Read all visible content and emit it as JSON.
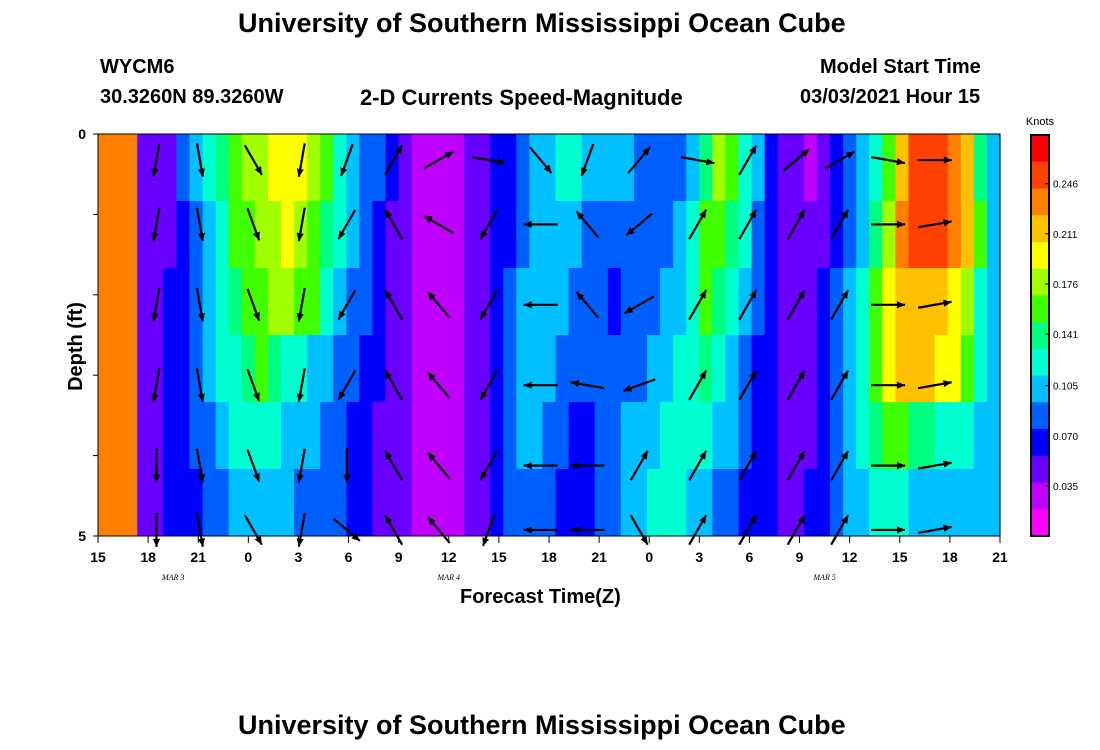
{
  "titles": {
    "top": "University of Southern Mississippi Ocean Cube",
    "bottom": "University of Southern Mississippi Ocean Cube"
  },
  "header": {
    "station": "WYCM6",
    "location": "30.3260N 89.3260W",
    "plot_title": "2-D Currents Speed-Magnitude",
    "model_label": "Model Start Time",
    "model_time": "03/03/2021 Hour 15"
  },
  "colors": {
    "scale": [
      "#ff00ff",
      "#c000ff",
      "#6a00ff",
      "#0000ff",
      "#0060ff",
      "#00c0ff",
      "#00ffd0",
      "#00ff80",
      "#40ff00",
      "#a0ff00",
      "#ffff00",
      "#ffc000",
      "#ff8000",
      "#ff4000",
      "#ff0000"
    ]
  },
  "chart_data": {
    "type": "heatmap",
    "title": "2-D Currents Speed-Magnitude",
    "xlabel": "Forecast Time(Z)",
    "ylabel": "Depth (ft)",
    "x_ticks": [
      "15",
      "18",
      "21",
      "0",
      "3",
      "6",
      "9",
      "12",
      "15",
      "18",
      "21",
      "0",
      "3",
      "6",
      "9",
      "12",
      "15",
      "18",
      "21"
    ],
    "date_labels": [
      "MAR 3",
      "MAR 4",
      "MAR 5"
    ],
    "y_ticks": [
      "0",
      "5"
    ],
    "ylim": [
      0,
      5
    ],
    "colorbar": {
      "unit": "Knots",
      "ticks": [
        "0.246",
        "0.211",
        "0.176",
        "0.141",
        "0.105",
        "0.070",
        "0.035"
      ],
      "range": [
        0,
        0.28
      ]
    },
    "depth_layers": 5,
    "speed_rows": [
      [
        0.24,
        0.24,
        0.24,
        0.05,
        0.05,
        0.05,
        0.08,
        0.1,
        0.12,
        0.14,
        0.16,
        0.17,
        0.18,
        0.19,
        0.2,
        0.19,
        0.17,
        0.15,
        0.13,
        0.11,
        0.09,
        0.08,
        0.06,
        0.04,
        0.03,
        0.02,
        0.02,
        0.03,
        0.04,
        0.05,
        0.06,
        0.06,
        0.08,
        0.1,
        0.11,
        0.12,
        0.12,
        0.11,
        0.11,
        0.1,
        0.1,
        0.09,
        0.08,
        0.08,
        0.09,
        0.11,
        0.14,
        0.17,
        0.15,
        0.13,
        0.1,
        0.07,
        0.05,
        0.04,
        0.03,
        0.05,
        0.06,
        0.08,
        0.1,
        0.12,
        0.16,
        0.22,
        0.25,
        0.26,
        0.26,
        0.24,
        0.22,
        0.14,
        0.1
      ],
      [
        0.24,
        0.24,
        0.24,
        0.05,
        0.05,
        0.05,
        0.07,
        0.09,
        0.11,
        0.13,
        0.15,
        0.16,
        0.17,
        0.18,
        0.19,
        0.18,
        0.16,
        0.14,
        0.12,
        0.1,
        0.08,
        0.07,
        0.05,
        0.04,
        0.03,
        0.02,
        0.02,
        0.03,
        0.04,
        0.05,
        0.06,
        0.07,
        0.09,
        0.1,
        0.11,
        0.11,
        0.1,
        0.09,
        0.08,
        0.08,
        0.08,
        0.08,
        0.08,
        0.09,
        0.1,
        0.12,
        0.15,
        0.16,
        0.14,
        0.12,
        0.09,
        0.07,
        0.05,
        0.04,
        0.04,
        0.05,
        0.07,
        0.09,
        0.11,
        0.14,
        0.18,
        0.23,
        0.25,
        0.26,
        0.25,
        0.24,
        0.22,
        0.15,
        0.11
      ],
      [
        0.24,
        0.24,
        0.24,
        0.05,
        0.05,
        0.06,
        0.07,
        0.09,
        0.1,
        0.12,
        0.14,
        0.15,
        0.16,
        0.17,
        0.17,
        0.16,
        0.15,
        0.13,
        0.11,
        0.09,
        0.08,
        0.06,
        0.05,
        0.04,
        0.03,
        0.02,
        0.02,
        0.03,
        0.04,
        0.05,
        0.07,
        0.08,
        0.1,
        0.11,
        0.11,
        0.1,
        0.09,
        0.08,
        0.08,
        0.07,
        0.08,
        0.08,
        0.09,
        0.1,
        0.11,
        0.13,
        0.15,
        0.14,
        0.12,
        0.1,
        0.08,
        0.06,
        0.05,
        0.04,
        0.04,
        0.06,
        0.08,
        0.1,
        0.12,
        0.16,
        0.2,
        0.22,
        0.22,
        0.22,
        0.21,
        0.2,
        0.18,
        0.13,
        0.1
      ],
      [
        0.24,
        0.24,
        0.24,
        0.05,
        0.05,
        0.06,
        0.07,
        0.08,
        0.1,
        0.12,
        0.13,
        0.14,
        0.15,
        0.14,
        0.13,
        0.12,
        0.11,
        0.1,
        0.09,
        0.08,
        0.07,
        0.06,
        0.05,
        0.04,
        0.03,
        0.02,
        0.02,
        0.03,
        0.04,
        0.05,
        0.07,
        0.08,
        0.1,
        0.11,
        0.1,
        0.09,
        0.08,
        0.08,
        0.08,
        0.08,
        0.09,
        0.09,
        0.1,
        0.11,
        0.12,
        0.13,
        0.14,
        0.13,
        0.11,
        0.09,
        0.07,
        0.06,
        0.05,
        0.04,
        0.05,
        0.06,
        0.08,
        0.1,
        0.12,
        0.15,
        0.19,
        0.21,
        0.21,
        0.21,
        0.2,
        0.19,
        0.16,
        0.12,
        0.1
      ],
      [
        0.24,
        0.24,
        0.24,
        0.05,
        0.05,
        0.06,
        0.07,
        0.08,
        0.09,
        0.11,
        0.12,
        0.13,
        0.13,
        0.12,
        0.11,
        0.1,
        0.1,
        0.09,
        0.08,
        0.07,
        0.06,
        0.05,
        0.05,
        0.04,
        0.03,
        0.02,
        0.02,
        0.03,
        0.04,
        0.05,
        0.07,
        0.09,
        0.1,
        0.1,
        0.09,
        0.08,
        0.07,
        0.07,
        0.08,
        0.09,
        0.1,
        0.1,
        0.11,
        0.12,
        0.12,
        0.12,
        0.12,
        0.11,
        0.1,
        0.08,
        0.07,
        0.06,
        0.05,
        0.05,
        0.05,
        0.07,
        0.09,
        0.11,
        0.12,
        0.14,
        0.16,
        0.15,
        0.14,
        0.14,
        0.13,
        0.13,
        0.12,
        0.11,
        0.1
      ],
      [
        0.24,
        0.24,
        0.24,
        0.05,
        0.05,
        0.06,
        0.06,
        0.07,
        0.08,
        0.09,
        0.1,
        0.11,
        0.11,
        0.1,
        0.1,
        0.09,
        0.09,
        0.08,
        0.08,
        0.07,
        0.06,
        0.05,
        0.05,
        0.04,
        0.03,
        0.02,
        0.02,
        0.03,
        0.04,
        0.05,
        0.06,
        0.08,
        0.09,
        0.09,
        0.08,
        0.07,
        0.07,
        0.07,
        0.08,
        0.09,
        0.1,
        0.11,
        0.12,
        0.12,
        0.12,
        0.11,
        0.1,
        0.09,
        0.08,
        0.07,
        0.06,
        0.06,
        0.05,
        0.05,
        0.06,
        0.07,
        0.08,
        0.1,
        0.11,
        0.12,
        0.13,
        0.12,
        0.11,
        0.11,
        0.11,
        0.11,
        0.1,
        0.1,
        0.1
      ]
    ],
    "vector_columns_hours": [
      18.5,
      21.1,
      0.3,
      3.2,
      5.9,
      8.7,
      11.4,
      14.4,
      17.5,
      20.3,
      23.4,
      2.9,
      5.9,
      8.8,
      11.4,
      14.3,
      17.1
    ],
    "vector_rows_depth": [
      0.2,
      1.0,
      2.0,
      3.0,
      4.0,
      4.8
    ],
    "vector_angles_deg": [
      [
        100,
        80,
        60,
        100,
        110,
        300,
        330,
        10,
        50,
        110,
        310,
        10,
        300,
        320,
        330,
        10,
        360
      ],
      [
        100,
        80,
        70,
        100,
        120,
        240,
        210,
        120,
        180,
        230,
        140,
        300,
        300,
        300,
        300,
        0,
        350
      ],
      [
        100,
        80,
        70,
        100,
        120,
        240,
        230,
        120,
        180,
        230,
        150,
        300,
        300,
        300,
        300,
        0,
        350
      ],
      [
        100,
        80,
        70,
        100,
        120,
        240,
        230,
        120,
        180,
        190,
        160,
        300,
        300,
        300,
        300,
        0,
        350
      ],
      [
        90,
        80,
        70,
        100,
        90,
        240,
        230,
        120,
        180,
        180,
        300,
        300,
        300,
        300,
        300,
        0,
        350
      ],
      [
        90,
        80,
        60,
        100,
        40,
        240,
        230,
        110,
        180,
        180,
        60,
        300,
        300,
        300,
        300,
        0,
        350
      ]
    ]
  }
}
